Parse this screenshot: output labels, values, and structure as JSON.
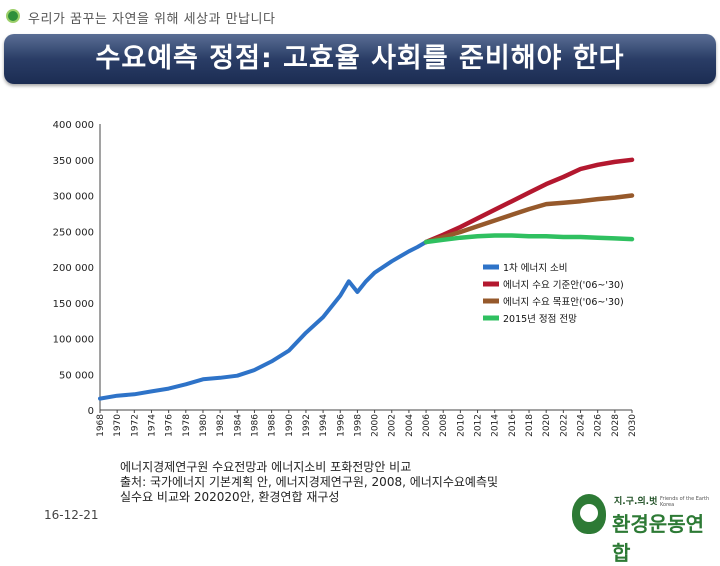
{
  "slogan": "우리가 꿈꾸는 자연을 위해 세상과 만납니다",
  "title": "수요예측 정점: 고효율 사회를 준비해야 한다",
  "chart_data": {
    "type": "line",
    "ylim": [
      0,
      400000
    ],
    "yticks": [
      0,
      50000,
      100000,
      150000,
      200000,
      250000,
      300000,
      350000,
      400000
    ],
    "ytick_labels": [
      "0",
      "50 000",
      "100 000",
      "150 000",
      "200 000",
      "250 000",
      "300 000",
      "350 000",
      "400 000"
    ],
    "xticks": [
      1968,
      1970,
      1972,
      1974,
      1976,
      1978,
      1980,
      1982,
      1984,
      1986,
      1988,
      1990,
      1992,
      1994,
      1996,
      1998,
      2000,
      2002,
      2004,
      2006,
      2008,
      2010,
      2012,
      2014,
      2016,
      2018,
      2020,
      2022,
      2024,
      2026,
      2028,
      2030
    ],
    "legend_position": "right",
    "series": [
      {
        "name": "1차 에너지 소비",
        "color": "#2e73c8",
        "x": [
          1968,
          1970,
          1972,
          1974,
          1976,
          1978,
          1980,
          1982,
          1984,
          1986,
          1988,
          1990,
          1992,
          1994,
          1996,
          1997,
          1998,
          1999,
          2000,
          2002,
          2004,
          2005,
          2006
        ],
        "y": [
          16000,
          20000,
          22000,
          26000,
          30000,
          36000,
          43000,
          45000,
          48000,
          56000,
          68000,
          83000,
          108000,
          130000,
          160000,
          180000,
          165000,
          180000,
          192000,
          208000,
          222000,
          228000,
          235000
        ]
      },
      {
        "name": "에너지 수요 기준안('06~'30)",
        "color": "#b3182f",
        "x": [
          2006,
          2008,
          2010,
          2012,
          2014,
          2016,
          2018,
          2020,
          2022,
          2024,
          2026,
          2028,
          2030
        ],
        "y": [
          235000,
          245000,
          256000,
          268000,
          280000,
          292000,
          304000,
          316000,
          326000,
          337000,
          343000,
          347000,
          350000
        ]
      },
      {
        "name": "에너지 수요 목표안('06~'30)",
        "color": "#96592b",
        "x": [
          2006,
          2008,
          2010,
          2012,
          2014,
          2016,
          2018,
          2020,
          2022,
          2024,
          2026,
          2028,
          2030
        ],
        "y": [
          235000,
          242000,
          249000,
          257000,
          265000,
          273000,
          281000,
          288000,
          290000,
          292000,
          295000,
          297000,
          300000
        ]
      },
      {
        "name": "2015년 정점 전망",
        "color": "#2fc060",
        "x": [
          2006,
          2008,
          2010,
          2012,
          2014,
          2016,
          2018,
          2020,
          2022,
          2024,
          2026,
          2028,
          2030
        ],
        "y": [
          235000,
          238000,
          241000,
          243000,
          244000,
          244000,
          243000,
          243000,
          242000,
          242000,
          241000,
          240000,
          239000
        ]
      }
    ]
  },
  "source_lines": [
    "에너지경제연구원 수요전망과 에너지소비 포화전망안 비교",
    "출처: 국가에너지 기본계획 안, 에너지경제연구원, 2008, 에너지수요예측및",
    "실수요 비교와 202020안, 환경연합 재구성"
  ],
  "date": "16-12-21",
  "logo": {
    "top": "지.구.의.벗",
    "sub": "Friends of the Earth Korea",
    "name": "환경운동연합"
  }
}
